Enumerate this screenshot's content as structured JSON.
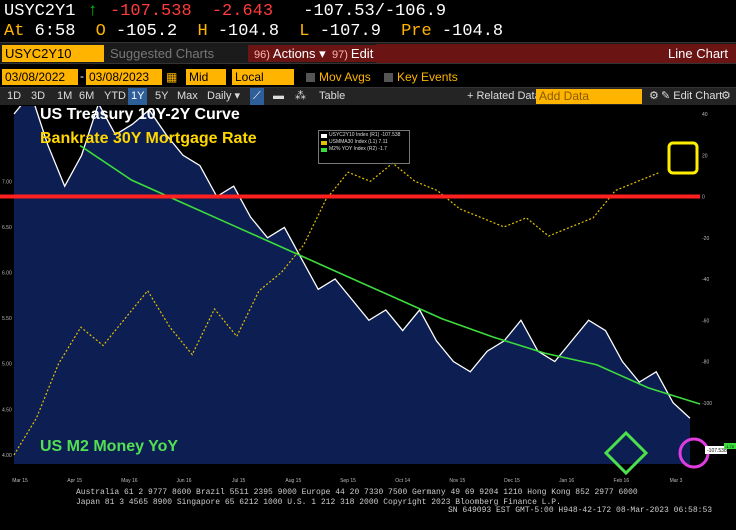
{
  "quote": {
    "symbol": "USYC2Y1",
    "arrow": "↑",
    "last": "-107.538",
    "change": "-2.643",
    "range": "-107.53/-106.9",
    "at_label": "At",
    "at": "6:58",
    "o_label": "O",
    "open": "-105.2",
    "h_label": "H",
    "high": "-104.8",
    "l_label": "L",
    "low": "-107.9",
    "pre_label": "Pre",
    "pre": "-104.8"
  },
  "menu": {
    "index": "USYC2Y10 Index",
    "dim_label": "Suggested Charts",
    "actions_num": "96)",
    "actions": "Actions",
    "edit_num": "97)",
    "edit": "Edit",
    "title": "Line Chart"
  },
  "params": {
    "start": "03/08/2022",
    "end": "03/08/2023",
    "field": "Mid Px",
    "currency": "Local CCY",
    "mov_avgs": "Mov Avgs",
    "key_events": "Key Events"
  },
  "toolbar": {
    "periods": [
      "1D",
      "3D",
      "1M",
      "6M",
      "YTD",
      "1Y",
      "5Y",
      "Max"
    ],
    "active_period": "1Y",
    "frequency": "Daily",
    "table": "Table",
    "related": "+ Related Data",
    "add_data": "Add Data",
    "edit_chart": "Edit Chart"
  },
  "overlays": {
    "curve": "US Treasury 10Y-2Y Curve",
    "mortgage": "Bankrate 30Y Mortgage Rate",
    "m2": "US M2 Money YoY"
  },
  "legend": {
    "items": [
      {
        "label": "USYC2Y10 Index (R1) -107.538",
        "color": "#ffffff"
      },
      {
        "label": "USMMA30 Index (L1) 7.11",
        "color": "#e5c100"
      },
      {
        "label": "M2% YOY Index (R2) -1.7",
        "color": "#3cdc3c"
      }
    ]
  },
  "colors": {
    "curve": "#ffffff",
    "mortgage": "#e5c100",
    "m2": "#3cdc3c",
    "zero_line": "#ff2020",
    "fill": "#0c1e52",
    "accent": "#ffb400"
  },
  "chart_data": {
    "type": "line",
    "x_ticks": [
      "Mar 15",
      "Apr 15",
      "May 16",
      "Jun 16",
      "Jul 15",
      "Aug 15",
      "Sep 15",
      "Oct 14",
      "Nov 15",
      "Dec 15",
      "Jan 16",
      "Feb 16",
      "Mar 3"
    ],
    "series": [
      {
        "name": "USYC2Y10 Index",
        "values": [
          40,
          50,
          25,
          5,
          20,
          45,
          30,
          35,
          42,
          30,
          20,
          15,
          0,
          5,
          -10,
          -20,
          -15,
          -30,
          -45,
          -40,
          -50,
          -60,
          -55,
          -65,
          -55,
          -70,
          -80,
          -85,
          -75,
          -70,
          -60,
          -75,
          -80,
          -70,
          -60,
          -65,
          -80,
          -90,
          -85,
          -100,
          -107.5
        ]
      },
      {
        "name": "USMMA30 Index",
        "values": [
          4.0,
          4.4,
          5.0,
          5.4,
          5.2,
          5.5,
          5.8,
          5.4,
          5.1,
          5.6,
          5.3,
          5.8,
          6.0,
          6.3,
          6.8,
          7.1,
          7.0,
          7.2,
          7.0,
          6.9,
          6.7,
          6.6,
          6.5,
          6.6,
          6.4,
          6.5,
          6.6,
          6.9,
          7.0,
          7.1
        ]
      },
      {
        "name": "M2% YOY Index",
        "values": [
          9.5,
          8.0,
          7.0,
          6.0,
          5.0,
          4.0,
          3.0,
          2.0,
          1.2,
          0.5,
          0.0,
          -1.0,
          -1.7
        ]
      }
    ]
  },
  "axis": {
    "right_ticks": [
      "40",
      "20",
      "0",
      "-20",
      "-40",
      "-60",
      "-80",
      "-100"
    ],
    "left_ticks": [
      "7.00",
      "6.50",
      "6.00",
      "5.50",
      "5.00",
      "4.50",
      "4.00"
    ],
    "last_curve": "-107.538",
    "last_m2": "-1.70"
  },
  "footer": {
    "line1": "Australia 61 2 9777 8600 Brazil 5511 2395 9000 Europe 44 20 7330 7500 Germany 49 69 9204 1210 Hong Kong 852 2977 6000",
    "line2": "Japan 81 3 4565 8900      Singapore 65 6212 1000      U.S. 1 212 318 2000        Copyright 2023 Bloomberg Finance L.P.",
    "line3": "SN 649093 EST  GMT-5:00 H948-42-172 08-Mar-2023 06:58:53"
  }
}
